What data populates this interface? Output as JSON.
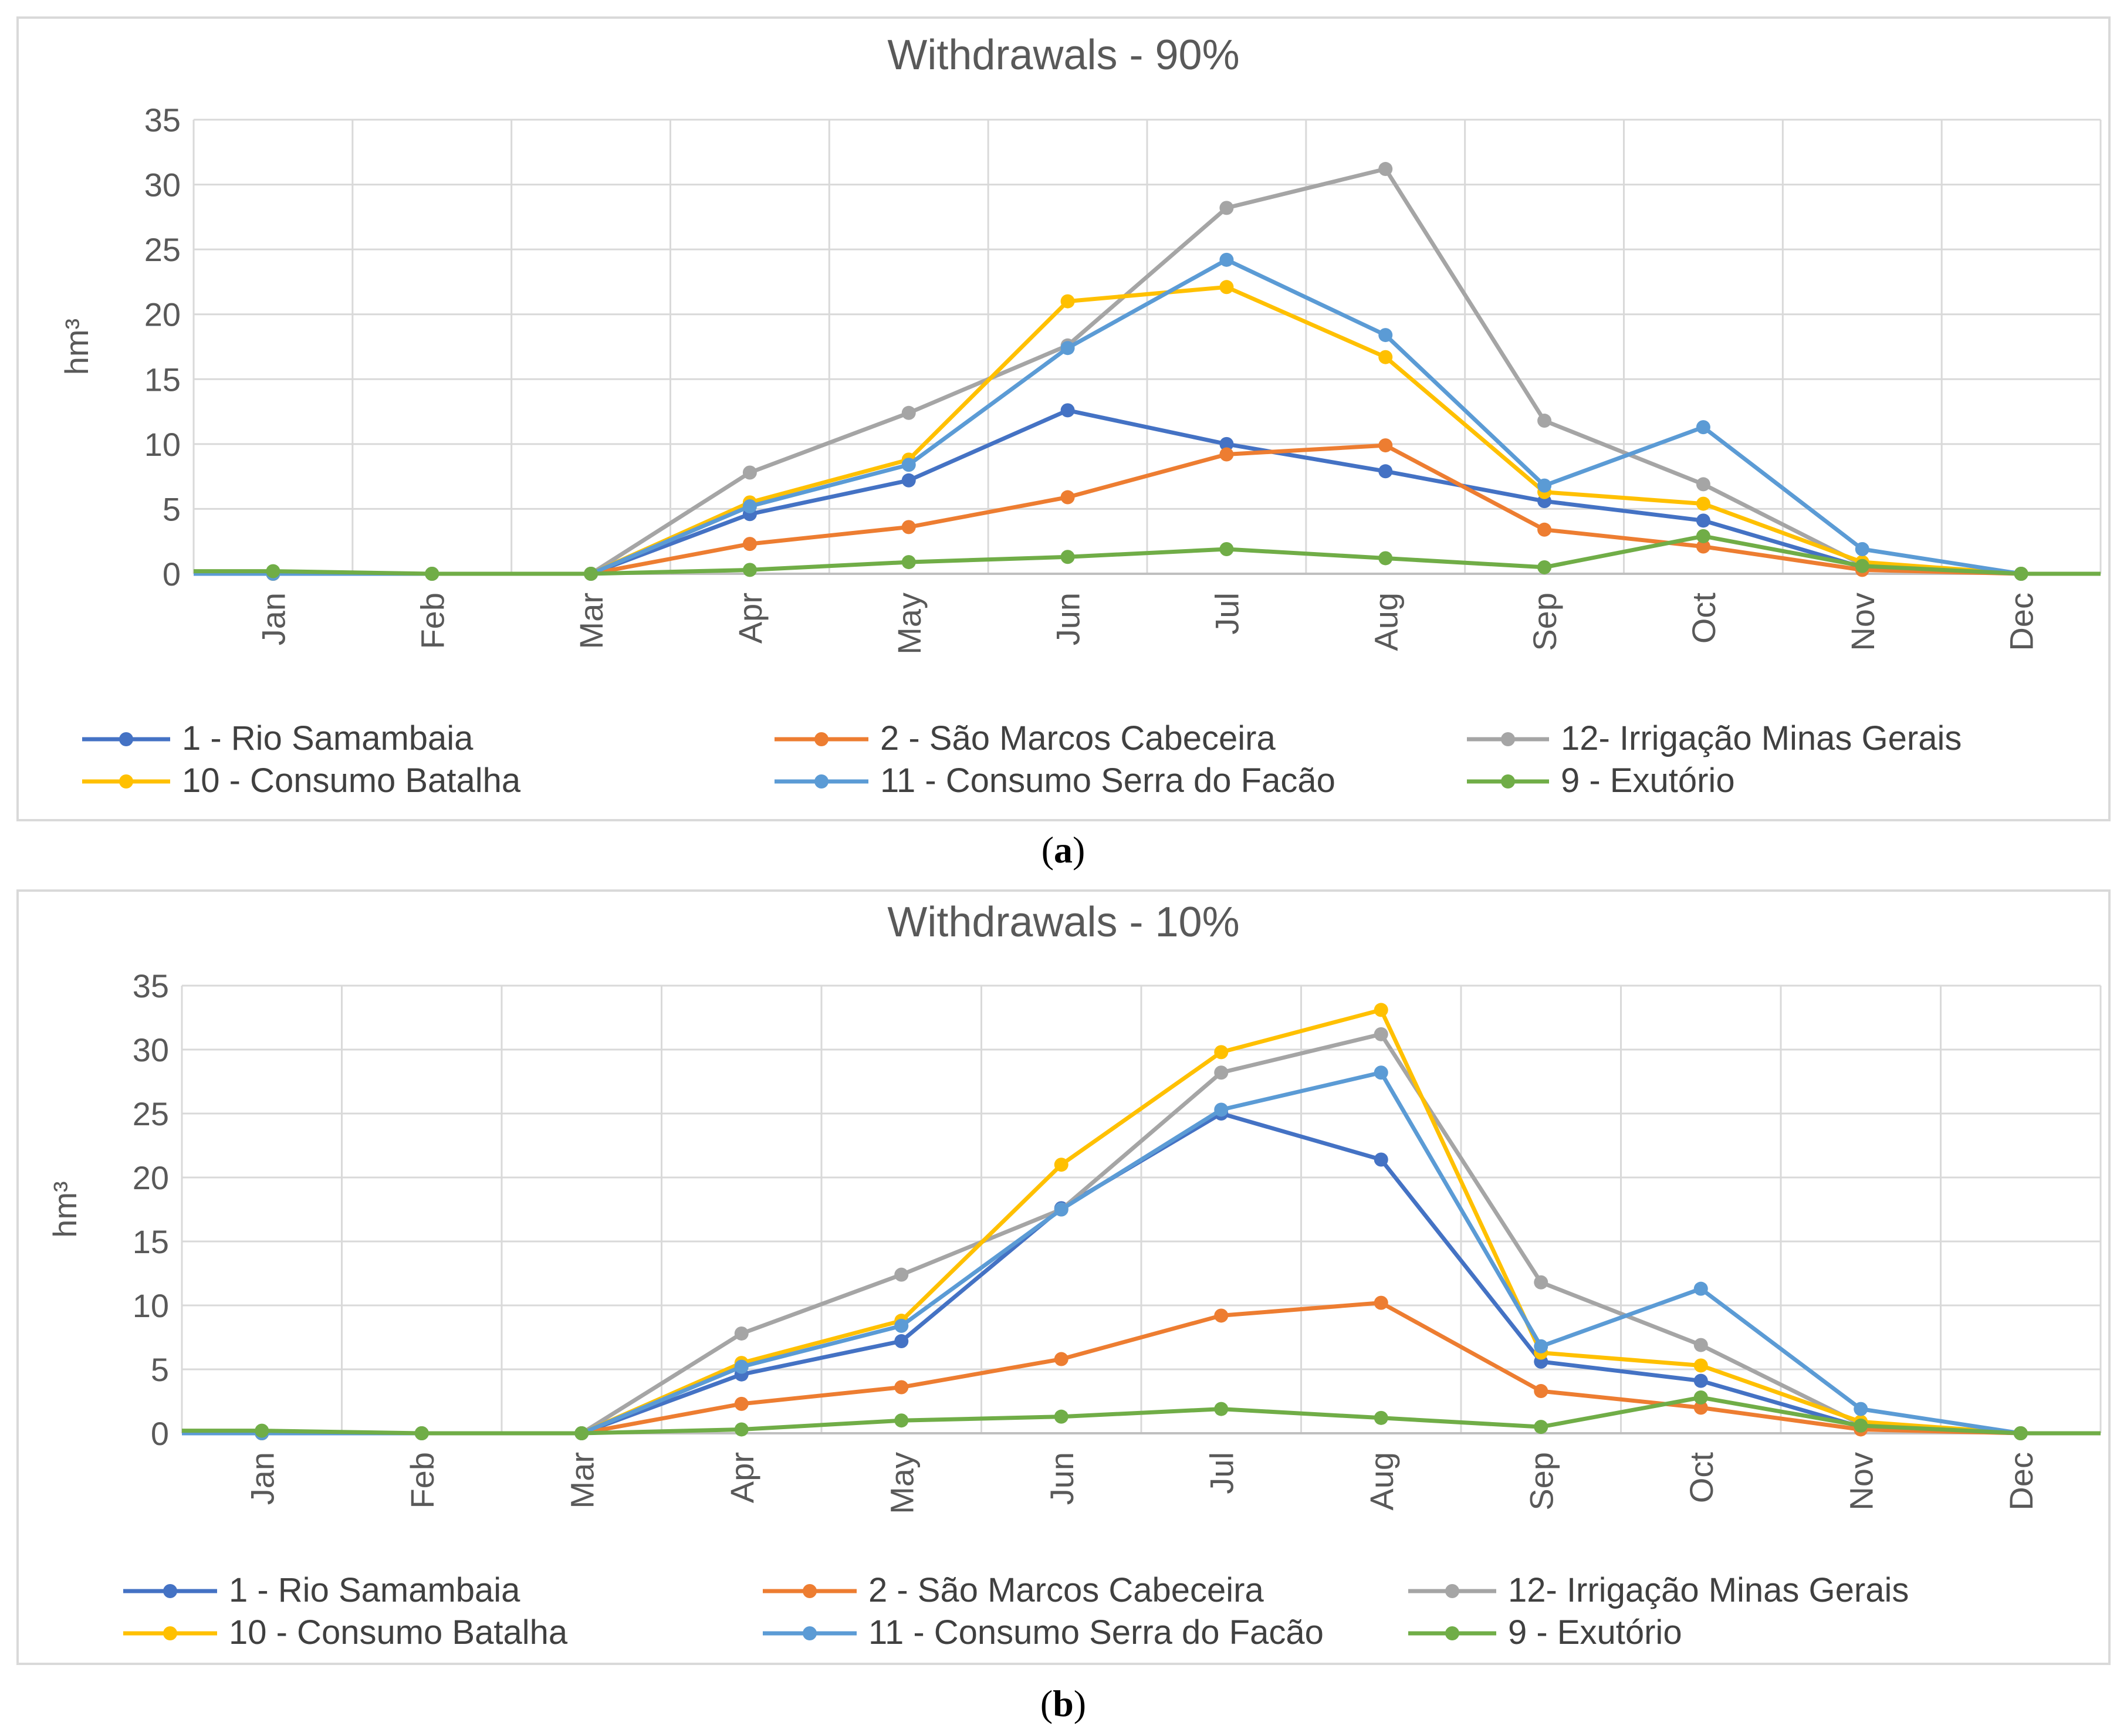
{
  "panel_labels": [
    "a",
    "b"
  ],
  "chart_data": [
    {
      "type": "line",
      "title": "Withdrawals - 90%",
      "xlabel": "",
      "ylabel": "hm³",
      "ylim": [
        0,
        35
      ],
      "yticks": [
        "0",
        "5",
        "10",
        "15",
        "20",
        "25",
        "30",
        "35"
      ],
      "categories": [
        "Jan",
        "Feb",
        "Mar",
        "Apr",
        "May",
        "Jun",
        "Jul",
        "Aug",
        "Sep",
        "Oct",
        "Nov",
        "Dec"
      ],
      "grid": true,
      "legend": "bottom",
      "series": [
        {
          "name": "1 - Rio Samambaia",
          "color": "#4472C4",
          "values": [
            0,
            0,
            0,
            4.6,
            7.2,
            12.6,
            10.0,
            7.9,
            5.6,
            4.1,
            0.5,
            0
          ]
        },
        {
          "name": "2 - São Marcos Cabeceira",
          "color": "#ED7D31",
          "values": [
            0,
            0,
            0,
            2.3,
            3.6,
            5.9,
            9.2,
            9.9,
            3.4,
            2.1,
            0.3,
            0
          ]
        },
        {
          "name": "12- Irrigação Minas Gerais",
          "color": "#A5A5A5",
          "values": [
            0,
            0,
            0,
            7.8,
            12.4,
            17.6,
            28.2,
            31.2,
            11.8,
            6.9,
            0.7,
            0
          ]
        },
        {
          "name": "10 - Consumo Batalha",
          "color": "#FFC000",
          "values": [
            0,
            0,
            0,
            5.5,
            8.8,
            21.0,
            22.1,
            16.7,
            6.3,
            5.4,
            0.9,
            0
          ]
        },
        {
          "name": "11 - Consumo Serra do Facão",
          "color": "#5B9BD5",
          "values": [
            0,
            0,
            0,
            5.2,
            8.4,
            17.4,
            24.2,
            18.4,
            6.8,
            11.3,
            1.9,
            0
          ]
        },
        {
          "name": "9 - Exutório",
          "color": "#70AD47",
          "values": [
            0.2,
            0,
            0,
            0.3,
            0.9,
            1.3,
            1.9,
            1.2,
            0.5,
            2.9,
            0.6,
            0
          ]
        }
      ]
    },
    {
      "type": "line",
      "title": "Withdrawals - 10%",
      "xlabel": "",
      "ylabel": "hm³",
      "ylim": [
        0,
        35
      ],
      "yticks": [
        "0",
        "5",
        "10",
        "15",
        "20",
        "25",
        "30",
        "35"
      ],
      "categories": [
        "Jan",
        "Feb",
        "Mar",
        "Apr",
        "May",
        "Jun",
        "Jul",
        "Aug",
        "Sep",
        "Oct",
        "Nov",
        "Dec"
      ],
      "grid": true,
      "legend": "bottom",
      "series": [
        {
          "name": "1 - Rio Samambaia",
          "color": "#4472C4",
          "values": [
            0,
            0,
            0,
            4.6,
            7.2,
            17.6,
            25.0,
            21.4,
            5.6,
            4.1,
            0.5,
            0
          ]
        },
        {
          "name": "2 - São Marcos Cabeceira",
          "color": "#ED7D31",
          "values": [
            0,
            0,
            0,
            2.3,
            3.6,
            5.8,
            9.2,
            10.2,
            3.3,
            2.0,
            0.3,
            0
          ]
        },
        {
          "name": "12- Irrigação Minas Gerais",
          "color": "#A5A5A5",
          "values": [
            0,
            0,
            0,
            7.8,
            12.4,
            17.5,
            28.2,
            31.2,
            11.8,
            6.9,
            0.7,
            0
          ]
        },
        {
          "name": "10 - Consumo Batalha",
          "color": "#FFC000",
          "values": [
            0,
            0,
            0,
            5.5,
            8.8,
            21.0,
            29.8,
            33.1,
            6.3,
            5.3,
            0.9,
            0
          ]
        },
        {
          "name": "11 - Consumo Serra do Facão",
          "color": "#5B9BD5",
          "values": [
            0,
            0,
            0,
            5.2,
            8.4,
            17.5,
            25.3,
            28.2,
            6.8,
            11.3,
            1.9,
            0
          ]
        },
        {
          "name": "9 - Exutório",
          "color": "#70AD47",
          "values": [
            0.2,
            0,
            0,
            0.3,
            1.0,
            1.3,
            1.9,
            1.2,
            0.5,
            2.8,
            0.6,
            0
          ]
        }
      ]
    }
  ]
}
